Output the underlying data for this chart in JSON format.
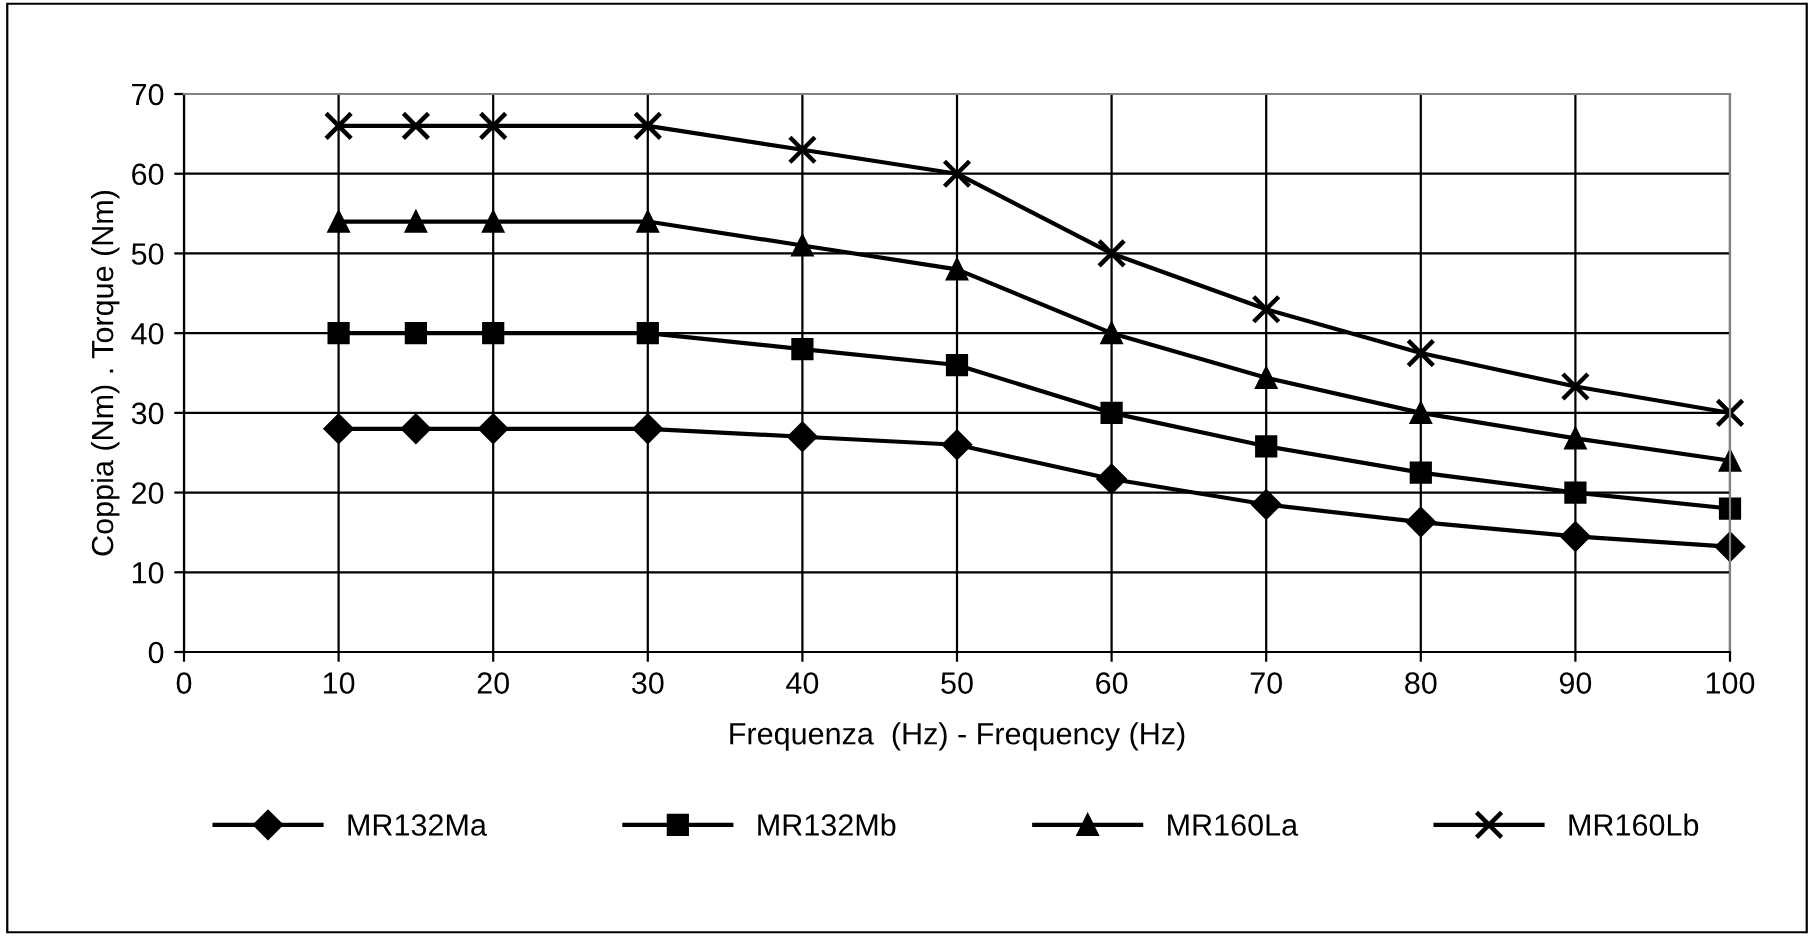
{
  "chart_data": {
    "type": "line",
    "xlabel": "Frequenza  (Hz) - Frequency (Hz)",
    "ylabel": "Coppia (Nm) . Torque (Nm)",
    "x": [
      10,
      15,
      20,
      30,
      40,
      50,
      60,
      70,
      80,
      90,
      100
    ],
    "series": [
      {
        "name": "MR132Ma",
        "color": "#000000",
        "marker": "diamond",
        "values": [
          28,
          28,
          28,
          28,
          27,
          26,
          21.7,
          18.5,
          16.3,
          14.5,
          13.2
        ]
      },
      {
        "name": "MR132Mb",
        "color": "#000000",
        "marker": "square",
        "values": [
          40,
          40,
          40,
          40,
          38,
          36,
          30,
          25.8,
          22.5,
          20,
          18
        ]
      },
      {
        "name": "MR160La",
        "color": "#000000",
        "marker": "triangle",
        "values": [
          54,
          54,
          54,
          54,
          51,
          48,
          40,
          34.4,
          30,
          26.8,
          24
        ]
      },
      {
        "name": "MR160Lb",
        "color": "#000000",
        "marker": "cross",
        "values": [
          66,
          66,
          66,
          66,
          63,
          60,
          50,
          43,
          37.5,
          33.3,
          30
        ]
      }
    ],
    "xlim": [
      0,
      100
    ],
    "xticks": [
      0,
      10,
      20,
      30,
      40,
      50,
      60,
      70,
      80,
      90,
      100
    ],
    "ylim": [
      0,
      70
    ],
    "yticks": [
      0,
      10,
      20,
      30,
      40,
      50,
      60,
      70
    ],
    "grid": true,
    "legend": "bottom",
    "line_style": "solid"
  }
}
